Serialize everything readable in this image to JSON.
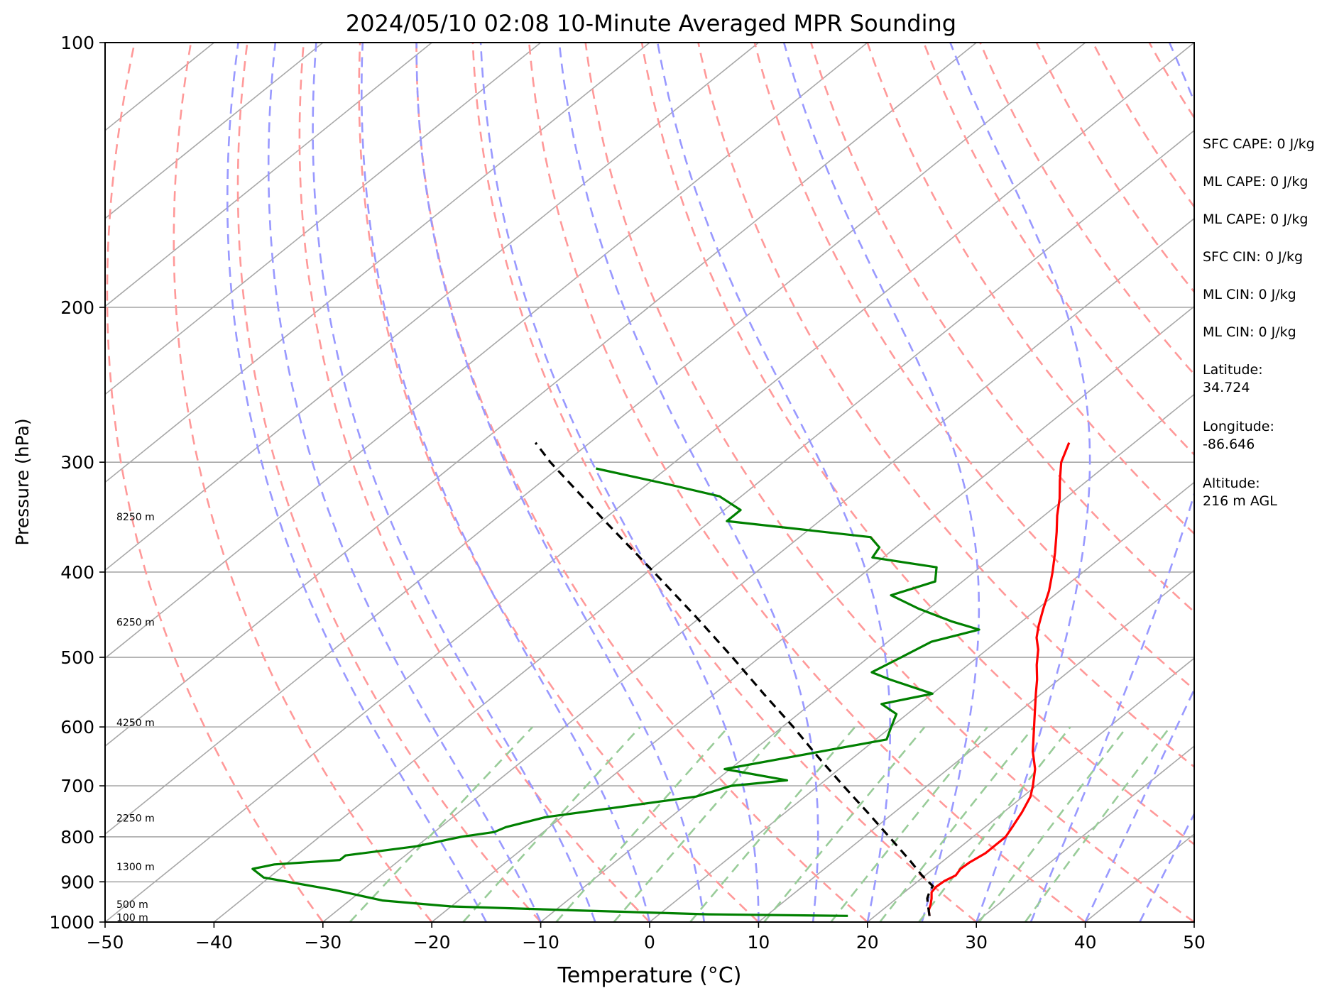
{
  "chart_data": {
    "type": "line",
    "title": "2024/05/10 02:08 10-Minute Averaged MPR Sounding",
    "xlabel": "Temperature (°C)",
    "ylabel": "Pressure (hPa)",
    "xlim": [
      -50,
      50
    ],
    "ylim": [
      1000,
      100
    ],
    "y_scale": "log",
    "x_ticks": [
      "−50",
      "−40",
      "−30",
      "−20",
      "−10",
      "0",
      "10",
      "20",
      "30",
      "40",
      "50"
    ],
    "y_ticks": [
      "100",
      "200",
      "300",
      "400",
      "500",
      "600",
      "700",
      "800",
      "900",
      "1000"
    ],
    "grid": true,
    "skew": true,
    "height_labels": [
      {
        "pressure": 346,
        "label": "8250 m"
      },
      {
        "pressure": 456,
        "label": "6250 m"
      },
      {
        "pressure": 593,
        "label": "4250 m"
      },
      {
        "pressure": 762,
        "label": "2250 m"
      },
      {
        "pressure": 865,
        "label": "1300 m"
      },
      {
        "pressure": 955,
        "label": "500 m"
      },
      {
        "pressure": 988,
        "label": "100 m"
      }
    ],
    "series": [
      {
        "color": "#ff0000",
        "values": [
          [
            984,
            25.0
          ],
          [
            970,
            24.3
          ],
          [
            955,
            23.8
          ],
          [
            940,
            23.2
          ],
          [
            925,
            22.5
          ],
          [
            912,
            22.3
          ],
          [
            898,
            22.4
          ],
          [
            885,
            22.8
          ],
          [
            870,
            22.5
          ],
          [
            855,
            22.6
          ],
          [
            835,
            23.0
          ],
          [
            818,
            23.0
          ],
          [
            800,
            23.0
          ],
          [
            780,
            22.5
          ],
          [
            750,
            21.7
          ],
          [
            720,
            20.7
          ],
          [
            700,
            19.7
          ],
          [
            670,
            18.0
          ],
          [
            640,
            15.8
          ],
          [
            610,
            13.8
          ],
          [
            580,
            11.7
          ],
          [
            550,
            9.5
          ],
          [
            530,
            8.0
          ],
          [
            510,
            6.3
          ],
          [
            490,
            4.7
          ],
          [
            475,
            3.2
          ],
          [
            460,
            2.0
          ],
          [
            440,
            0.5
          ],
          [
            420,
            -1.0
          ],
          [
            400,
            -2.8
          ],
          [
            380,
            -4.8
          ],
          [
            360,
            -7.0
          ],
          [
            345,
            -8.8
          ],
          [
            330,
            -10.5
          ],
          [
            315,
            -12.5
          ],
          [
            300,
            -14.5
          ],
          [
            285,
            -16.0
          ]
        ]
      },
      {
        "color": "#008000",
        "values": [
          [
            984,
            17.5
          ],
          [
            980,
            4.5
          ],
          [
            970,
            -8.0
          ],
          [
            960,
            -20.0
          ],
          [
            945,
            -27.0
          ],
          [
            920,
            -32.5
          ],
          [
            890,
            -40.5
          ],
          [
            870,
            -42.5
          ],
          [
            860,
            -41.0
          ],
          [
            850,
            -35.5
          ],
          [
            840,
            -35.5
          ],
          [
            820,
            -30.0
          ],
          [
            800,
            -27.0
          ],
          [
            790,
            -24.5
          ],
          [
            780,
            -24.0
          ],
          [
            760,
            -21.5
          ],
          [
            720,
            -10.0
          ],
          [
            700,
            -8.0
          ],
          [
            690,
            -3.5
          ],
          [
            670,
            -10.5
          ],
          [
            650,
            -6.0
          ],
          [
            620,
            1.0
          ],
          [
            600,
            0.0
          ],
          [
            580,
            -1.0
          ],
          [
            565,
            -3.5
          ],
          [
            550,
            0.0
          ],
          [
            530,
            -5.5
          ],
          [
            520,
            -8.0
          ],
          [
            500,
            -7.0
          ],
          [
            480,
            -6.0
          ],
          [
            465,
            -3.0
          ],
          [
            455,
            -6.5
          ],
          [
            440,
            -11.0
          ],
          [
            425,
            -15.0
          ],
          [
            410,
            -12.5
          ],
          [
            395,
            -14.0
          ],
          [
            385,
            -21.0
          ],
          [
            375,
            -21.5
          ],
          [
            365,
            -23.5
          ],
          [
            350,
            -38.5
          ],
          [
            340,
            -38.5
          ],
          [
            328,
            -42.0
          ],
          [
            318,
            -48.0
          ],
          [
            305,
            -56.5
          ]
        ]
      },
      {
        "color": "#000000",
        "dashed": true,
        "values": [
          [
            984,
            25.0
          ],
          [
            960,
            23.8
          ],
          [
            940,
            22.8
          ],
          [
            925,
            22.3
          ],
          [
            910,
            21.9
          ],
          [
            885,
            19.7
          ],
          [
            850,
            16.8
          ],
          [
            800,
            12.3
          ],
          [
            750,
            7.5
          ],
          [
            700,
            2.3
          ],
          [
            650,
            -3.2
          ],
          [
            600,
            -9.0
          ],
          [
            550,
            -15.5
          ],
          [
            500,
            -22.5
          ],
          [
            450,
            -30.4
          ],
          [
            400,
            -39.4
          ],
          [
            350,
            -49.7
          ],
          [
            300,
            -61.4
          ],
          [
            285,
            -65.0
          ]
        ]
      }
    ]
  },
  "info_panel": [
    "SFC CAPE: 0 J/kg",
    "ML CAPE: 0 J/kg",
    "ML CAPE: 0 J/kg",
    "SFC CIN: 0 J/kg",
    "ML CIN: 0 J/kg",
    "ML CIN: 0 J/kg",
    "Latitude:\n34.724",
    "Longitude:\n-86.646",
    "Altitude:\n216 m AGL"
  ],
  "colors": {
    "isotherm": "#a8a8a8",
    "dry_adiabat": "#ff9999",
    "moist_adiabat": "#9999ff",
    "mixing_ratio": "#99cc99",
    "temperature": "#ff0000",
    "dewpoint": "#008000",
    "parcel": "#000000"
  }
}
